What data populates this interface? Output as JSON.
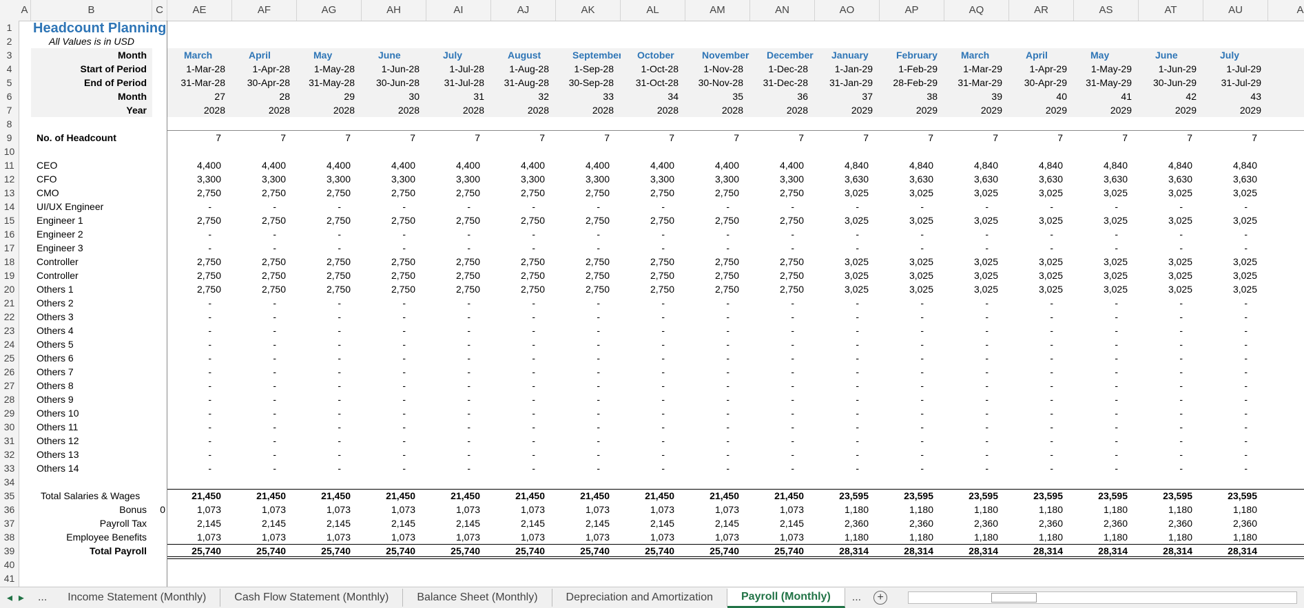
{
  "column_headers": [
    "A",
    "B",
    "C",
    "AE",
    "AF",
    "AG",
    "AH",
    "AI",
    "AJ",
    "AK",
    "AL",
    "AM",
    "AN",
    "AO",
    "AP",
    "AQ",
    "AR",
    "AS",
    "AT",
    "AU",
    "A"
  ],
  "row_numbers": [
    1,
    2,
    3,
    4,
    5,
    6,
    7,
    8,
    9,
    10,
    11,
    12,
    13,
    14,
    15,
    16,
    17,
    18,
    19,
    20,
    21,
    22,
    23,
    24,
    25,
    26,
    27,
    28,
    29,
    30,
    31,
    32,
    33,
    34,
    35,
    36,
    37,
    38,
    39,
    40,
    41
  ],
  "title": "Headcount Planning",
  "subtitle": "All Values is in USD",
  "header_rows": [
    {
      "label": "Month",
      "values": [
        "March",
        "April",
        "May",
        "June",
        "July",
        "August",
        "September",
        "October",
        "November",
        "December",
        "January",
        "February",
        "March",
        "April",
        "May",
        "June",
        "July"
      ]
    },
    {
      "label": "Start of Period",
      "values": [
        "1-Mar-28",
        "1-Apr-28",
        "1-May-28",
        "1-Jun-28",
        "1-Jul-28",
        "1-Aug-28",
        "1-Sep-28",
        "1-Oct-28",
        "1-Nov-28",
        "1-Dec-28",
        "1-Jan-29",
        "1-Feb-29",
        "1-Mar-29",
        "1-Apr-29",
        "1-May-29",
        "1-Jun-29",
        "1-Jul-29"
      ]
    },
    {
      "label": "End of Period",
      "values": [
        "31-Mar-28",
        "30-Apr-28",
        "31-May-28",
        "30-Jun-28",
        "31-Jul-28",
        "31-Aug-28",
        "30-Sep-28",
        "31-Oct-28",
        "30-Nov-28",
        "31-Dec-28",
        "31-Jan-29",
        "28-Feb-29",
        "31-Mar-29",
        "30-Apr-29",
        "31-May-29",
        "30-Jun-29",
        "31-Jul-29"
      ]
    },
    {
      "label": "Month",
      "values": [
        27,
        28,
        29,
        30,
        31,
        32,
        33,
        34,
        35,
        36,
        37,
        38,
        39,
        40,
        41,
        42,
        43
      ]
    },
    {
      "label": "Year",
      "values": [
        2028,
        2028,
        2028,
        2028,
        2028,
        2028,
        2028,
        2028,
        2028,
        2028,
        2029,
        2029,
        2029,
        2029,
        2029,
        2029,
        2029
      ]
    }
  ],
  "rows": [
    {
      "label": "No. of Headcount",
      "values": [
        7,
        7,
        7,
        7,
        7,
        7,
        7,
        7,
        7,
        7,
        7,
        7,
        7,
        7,
        7,
        7,
        7
      ]
    },
    {
      "label": "CEO",
      "values": [
        "4,400",
        "4,400",
        "4,400",
        "4,400",
        "4,400",
        "4,400",
        "4,400",
        "4,400",
        "4,400",
        "4,400",
        "4,840",
        "4,840",
        "4,840",
        "4,840",
        "4,840",
        "4,840",
        "4,840"
      ]
    },
    {
      "label": "CFO",
      "values": [
        "3,300",
        "3,300",
        "3,300",
        "3,300",
        "3,300",
        "3,300",
        "3,300",
        "3,300",
        "3,300",
        "3,300",
        "3,630",
        "3,630",
        "3,630",
        "3,630",
        "3,630",
        "3,630",
        "3,630"
      ]
    },
    {
      "label": "CMO",
      "values": [
        "2,750",
        "2,750",
        "2,750",
        "2,750",
        "2,750",
        "2,750",
        "2,750",
        "2,750",
        "2,750",
        "2,750",
        "3,025",
        "3,025",
        "3,025",
        "3,025",
        "3,025",
        "3,025",
        "3,025"
      ]
    },
    {
      "label": "UI/UX Engineer",
      "values": [
        "-",
        "-",
        "-",
        "-",
        "-",
        "-",
        "-",
        "-",
        "-",
        "-",
        "-",
        "-",
        "-",
        "-",
        "-",
        "-",
        "-"
      ]
    },
    {
      "label": "Engineer 1",
      "values": [
        "2,750",
        "2,750",
        "2,750",
        "2,750",
        "2,750",
        "2,750",
        "2,750",
        "2,750",
        "2,750",
        "2,750",
        "3,025",
        "3,025",
        "3,025",
        "3,025",
        "3,025",
        "3,025",
        "3,025"
      ]
    },
    {
      "label": "Engineer 2",
      "values": [
        "-",
        "-",
        "-",
        "-",
        "-",
        "-",
        "-",
        "-",
        "-",
        "-",
        "-",
        "-",
        "-",
        "-",
        "-",
        "-",
        "-"
      ]
    },
    {
      "label": "Engineer 3",
      "values": [
        "-",
        "-",
        "-",
        "-",
        "-",
        "-",
        "-",
        "-",
        "-",
        "-",
        "-",
        "-",
        "-",
        "-",
        "-",
        "-",
        "-"
      ]
    },
    {
      "label": "Controller",
      "values": [
        "2,750",
        "2,750",
        "2,750",
        "2,750",
        "2,750",
        "2,750",
        "2,750",
        "2,750",
        "2,750",
        "2,750",
        "3,025",
        "3,025",
        "3,025",
        "3,025",
        "3,025",
        "3,025",
        "3,025"
      ]
    },
    {
      "label": "Controller",
      "values": [
        "2,750",
        "2,750",
        "2,750",
        "2,750",
        "2,750",
        "2,750",
        "2,750",
        "2,750",
        "2,750",
        "2,750",
        "3,025",
        "3,025",
        "3,025",
        "3,025",
        "3,025",
        "3,025",
        "3,025"
      ]
    },
    {
      "label": "Others 1",
      "values": [
        "2,750",
        "2,750",
        "2,750",
        "2,750",
        "2,750",
        "2,750",
        "2,750",
        "2,750",
        "2,750",
        "2,750",
        "3,025",
        "3,025",
        "3,025",
        "3,025",
        "3,025",
        "3,025",
        "3,025"
      ]
    },
    {
      "label": "Others 2",
      "values": [
        "-",
        "-",
        "-",
        "-",
        "-",
        "-",
        "-",
        "-",
        "-",
        "-",
        "-",
        "-",
        "-",
        "-",
        "-",
        "-",
        "-"
      ]
    },
    {
      "label": "Others 3",
      "values": [
        "-",
        "-",
        "-",
        "-",
        "-",
        "-",
        "-",
        "-",
        "-",
        "-",
        "-",
        "-",
        "-",
        "-",
        "-",
        "-",
        "-"
      ]
    },
    {
      "label": "Others 4",
      "values": [
        "-",
        "-",
        "-",
        "-",
        "-",
        "-",
        "-",
        "-",
        "-",
        "-",
        "-",
        "-",
        "-",
        "-",
        "-",
        "-",
        "-"
      ]
    },
    {
      "label": "Others 5",
      "values": [
        "-",
        "-",
        "-",
        "-",
        "-",
        "-",
        "-",
        "-",
        "-",
        "-",
        "-",
        "-",
        "-",
        "-",
        "-",
        "-",
        "-"
      ]
    },
    {
      "label": "Others 6",
      "values": [
        "-",
        "-",
        "-",
        "-",
        "-",
        "-",
        "-",
        "-",
        "-",
        "-",
        "-",
        "-",
        "-",
        "-",
        "-",
        "-",
        "-"
      ]
    },
    {
      "label": "Others 7",
      "values": [
        "-",
        "-",
        "-",
        "-",
        "-",
        "-",
        "-",
        "-",
        "-",
        "-",
        "-",
        "-",
        "-",
        "-",
        "-",
        "-",
        "-"
      ]
    },
    {
      "label": "Others 8",
      "values": [
        "-",
        "-",
        "-",
        "-",
        "-",
        "-",
        "-",
        "-",
        "-",
        "-",
        "-",
        "-",
        "-",
        "-",
        "-",
        "-",
        "-"
      ]
    },
    {
      "label": "Others 9",
      "values": [
        "-",
        "-",
        "-",
        "-",
        "-",
        "-",
        "-",
        "-",
        "-",
        "-",
        "-",
        "-",
        "-",
        "-",
        "-",
        "-",
        "-"
      ]
    },
    {
      "label": "Others 10",
      "values": [
        "-",
        "-",
        "-",
        "-",
        "-",
        "-",
        "-",
        "-",
        "-",
        "-",
        "-",
        "-",
        "-",
        "-",
        "-",
        "-",
        "-"
      ]
    },
    {
      "label": "Others 11",
      "values": [
        "-",
        "-",
        "-",
        "-",
        "-",
        "-",
        "-",
        "-",
        "-",
        "-",
        "-",
        "-",
        "-",
        "-",
        "-",
        "-",
        "-"
      ]
    },
    {
      "label": "Others 12",
      "values": [
        "-",
        "-",
        "-",
        "-",
        "-",
        "-",
        "-",
        "-",
        "-",
        "-",
        "-",
        "-",
        "-",
        "-",
        "-",
        "-",
        "-"
      ]
    },
    {
      "label": "Others 13",
      "values": [
        "-",
        "-",
        "-",
        "-",
        "-",
        "-",
        "-",
        "-",
        "-",
        "-",
        "-",
        "-",
        "-",
        "-",
        "-",
        "-",
        "-"
      ]
    },
    {
      "label": "Others 14",
      "values": [
        "-",
        "-",
        "-",
        "-",
        "-",
        "-",
        "-",
        "-",
        "-",
        "-",
        "-",
        "-",
        "-",
        "-",
        "-",
        "-",
        "-"
      ]
    },
    {
      "label": "Total Salaries & Wages",
      "values": [
        "21,450",
        "21,450",
        "21,450",
        "21,450",
        "21,450",
        "21,450",
        "21,450",
        "21,450",
        "21,450",
        "21,450",
        "23,595",
        "23,595",
        "23,595",
        "23,595",
        "23,595",
        "23,595",
        "23,595"
      ]
    },
    {
      "label": "Bonus",
      "column_c": 0,
      "values": [
        "1,073",
        "1,073",
        "1,073",
        "1,073",
        "1,073",
        "1,073",
        "1,073",
        "1,073",
        "1,073",
        "1,073",
        "1,180",
        "1,180",
        "1,180",
        "1,180",
        "1,180",
        "1,180",
        "1,180"
      ]
    },
    {
      "label": "Payroll Tax",
      "values": [
        "2,145",
        "2,145",
        "2,145",
        "2,145",
        "2,145",
        "2,145",
        "2,145",
        "2,145",
        "2,145",
        "2,145",
        "2,360",
        "2,360",
        "2,360",
        "2,360",
        "2,360",
        "2,360",
        "2,360"
      ]
    },
    {
      "label": "Employee Benefits",
      "values": [
        "1,073",
        "1,073",
        "1,073",
        "1,073",
        "1,073",
        "1,073",
        "1,073",
        "1,073",
        "1,073",
        "1,073",
        "1,180",
        "1,180",
        "1,180",
        "1,180",
        "1,180",
        "1,180",
        "1,180"
      ]
    },
    {
      "label": "Total Payroll",
      "values": [
        "25,740",
        "25,740",
        "25,740",
        "25,740",
        "25,740",
        "25,740",
        "25,740",
        "25,740",
        "25,740",
        "25,740",
        "28,314",
        "28,314",
        "28,314",
        "28,314",
        "28,314",
        "28,314",
        "28,314"
      ]
    }
  ],
  "tabs": [
    "...",
    "Income Statement (Monthly)",
    "Cash Flow Statement (Monthly)",
    "Balance Sheet (Monthly)",
    "Depreciation and Amortization",
    "Payroll (Monthly)",
    "..."
  ]
}
